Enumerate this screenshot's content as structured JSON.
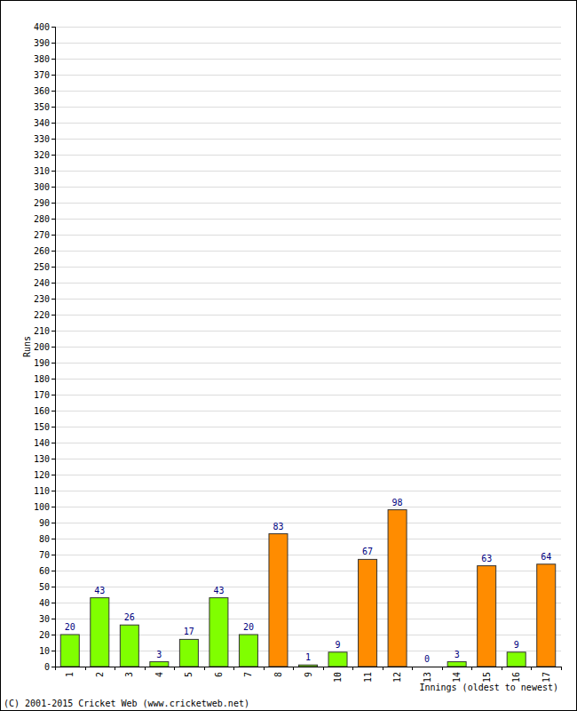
{
  "chart_data": {
    "type": "bar",
    "x_label": "Innings (oldest to newest)",
    "y_label": "Runs",
    "annotations": [
      "(C) 2001-2015 Cricket Web (www.cricketweb.net)"
    ],
    "categories": [
      "1",
      "2",
      "3",
      "4",
      "5",
      "6",
      "7",
      "8",
      "9",
      "10",
      "11",
      "12",
      "13",
      "14",
      "15",
      "16",
      "17"
    ],
    "values": [
      20,
      43,
      26,
      3,
      17,
      43,
      20,
      83,
      1,
      9,
      67,
      98,
      0,
      3,
      63,
      9,
      64
    ],
    "colors": [
      "#80ff00",
      "#80ff00",
      "#80ff00",
      "#80ff00",
      "#80ff00",
      "#80ff00",
      "#80ff00",
      "#ff8c00",
      "#80ff00",
      "#80ff00",
      "#ff8c00",
      "#ff8c00",
      "#80ff00",
      "#80ff00",
      "#ff8c00",
      "#80ff00",
      "#ff8c00"
    ],
    "ylim": [
      0,
      400
    ],
    "yticks": [
      0,
      10,
      20,
      30,
      40,
      50,
      60,
      70,
      80,
      90,
      100,
      110,
      120,
      130,
      140,
      150,
      160,
      170,
      180,
      190,
      200,
      210,
      220,
      230,
      240,
      250,
      260,
      270,
      280,
      290,
      300,
      310,
      320,
      330,
      340,
      350,
      360,
      370,
      380,
      390,
      400
    ],
    "grid": true,
    "data_labels": true
  }
}
